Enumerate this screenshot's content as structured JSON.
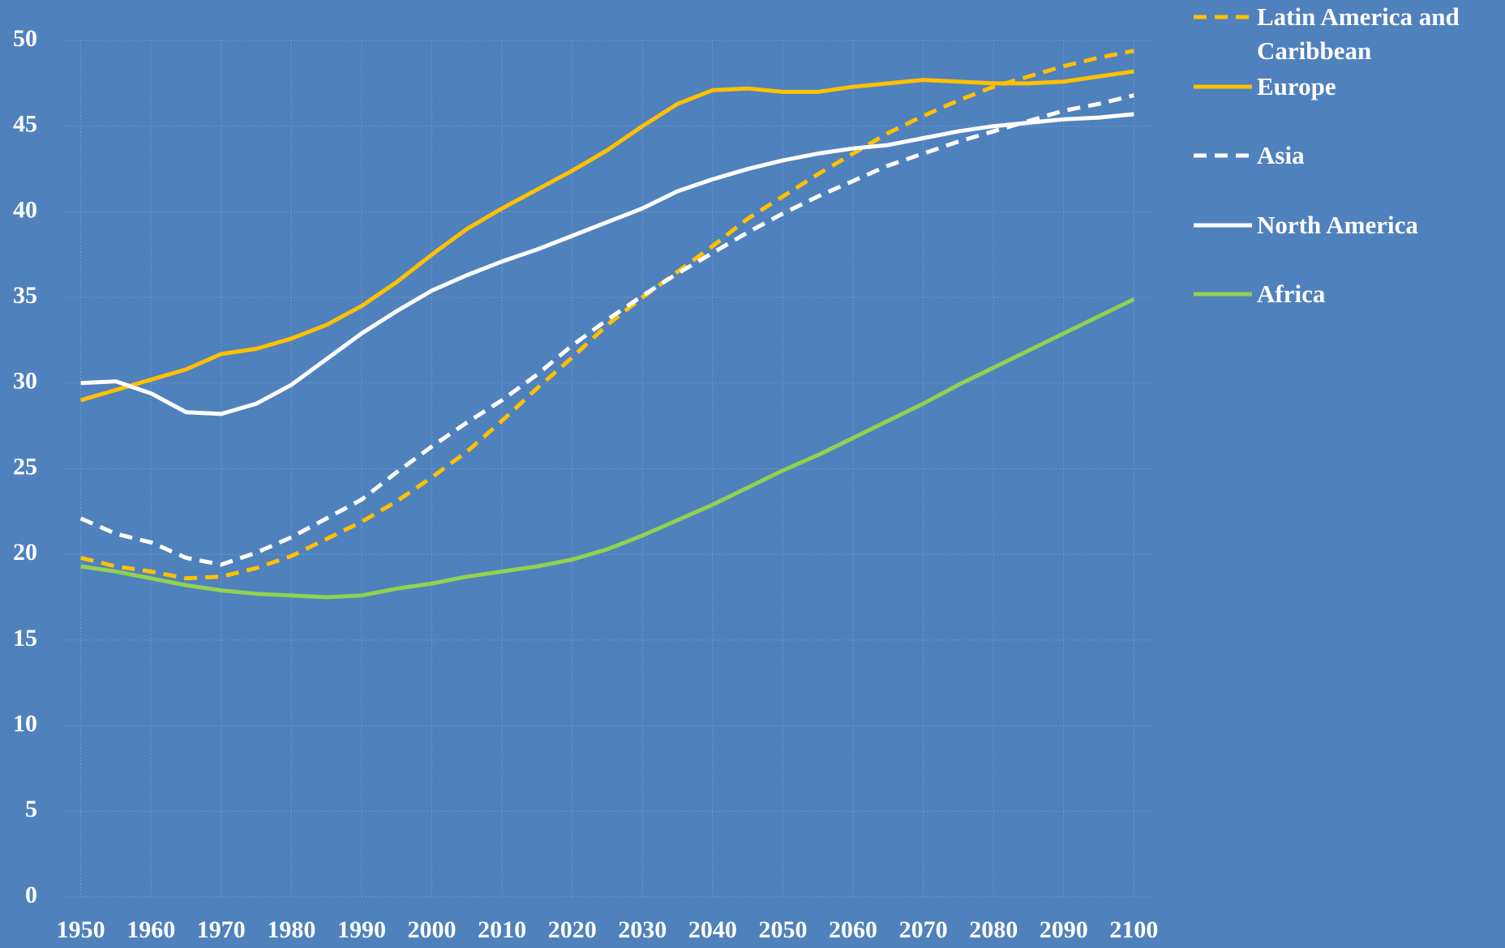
{
  "chart_data": {
    "type": "line",
    "x": [
      1950,
      1955,
      1960,
      1965,
      1970,
      1975,
      1980,
      1985,
      1990,
      1995,
      2000,
      2005,
      2010,
      2015,
      2020,
      2025,
      2030,
      2035,
      2040,
      2045,
      2050,
      2055,
      2060,
      2065,
      2070,
      2075,
      2080,
      2085,
      2090,
      2095,
      2100
    ],
    "xlim": [
      1947.5,
      2102.5
    ],
    "xticks": [
      1950,
      1960,
      1970,
      1980,
      1990,
      2000,
      2010,
      2020,
      2030,
      2040,
      2050,
      2060,
      2070,
      2080,
      2090,
      2100
    ],
    "ylim": [
      0,
      50
    ],
    "yticks": [
      0,
      5,
      10,
      15,
      20,
      25,
      30,
      35,
      40,
      45,
      50
    ],
    "grid": true,
    "series": [
      {
        "name": "Latin America and Caribbean",
        "color": "#ffc000",
        "dashed": true,
        "values": [
          19.8,
          19.3,
          19.0,
          18.6,
          18.7,
          19.2,
          19.9,
          20.9,
          21.9,
          23.1,
          24.5,
          26.0,
          27.8,
          29.7,
          31.5,
          33.4,
          35.0,
          36.5,
          38.0,
          39.6,
          40.9,
          42.2,
          43.4,
          44.6,
          45.6,
          46.5,
          47.3,
          47.9,
          48.5,
          49.0,
          49.4
        ]
      },
      {
        "name": "Europe",
        "color": "#ffc000",
        "dashed": false,
        "values": [
          29.0,
          29.6,
          30.2,
          30.8,
          31.7,
          32.0,
          32.6,
          33.4,
          34.5,
          35.9,
          37.5,
          39.0,
          40.2,
          41.3,
          42.4,
          43.6,
          45.0,
          46.3,
          47.1,
          47.2,
          47.0,
          47.0,
          47.3,
          47.5,
          47.7,
          47.6,
          47.5,
          47.5,
          47.6,
          47.9,
          48.2
        ]
      },
      {
        "name": "Asia",
        "color": "#ffffff",
        "dashed": true,
        "values": [
          22.1,
          21.2,
          20.7,
          19.8,
          19.4,
          20.1,
          21.0,
          22.1,
          23.2,
          24.8,
          26.3,
          27.7,
          29.0,
          30.5,
          32.2,
          33.7,
          35.1,
          36.4,
          37.6,
          38.8,
          39.9,
          40.9,
          41.8,
          42.7,
          43.4,
          44.1,
          44.7,
          45.3,
          45.9,
          46.3,
          46.8
        ]
      },
      {
        "name": "North America",
        "color": "#ffffff",
        "dashed": false,
        "values": [
          30.0,
          30.1,
          29.4,
          28.3,
          28.2,
          28.8,
          29.9,
          31.4,
          32.9,
          34.2,
          35.4,
          36.3,
          37.1,
          37.8,
          38.6,
          39.4,
          40.2,
          41.2,
          41.9,
          42.5,
          43.0,
          43.4,
          43.7,
          43.9,
          44.3,
          44.7,
          45.0,
          45.2,
          45.4,
          45.5,
          45.7
        ]
      },
      {
        "name": "Africa",
        "color": "#92d050",
        "dashed": false,
        "values": [
          19.3,
          19.0,
          18.6,
          18.2,
          17.9,
          17.7,
          17.6,
          17.5,
          17.6,
          18.0,
          18.3,
          18.7,
          19.0,
          19.3,
          19.7,
          20.3,
          21.1,
          22.0,
          22.9,
          23.9,
          24.9,
          25.8,
          26.8,
          27.8,
          28.8,
          29.9,
          30.9,
          31.9,
          32.9,
          33.9,
          34.9
        ]
      }
    ]
  }
}
